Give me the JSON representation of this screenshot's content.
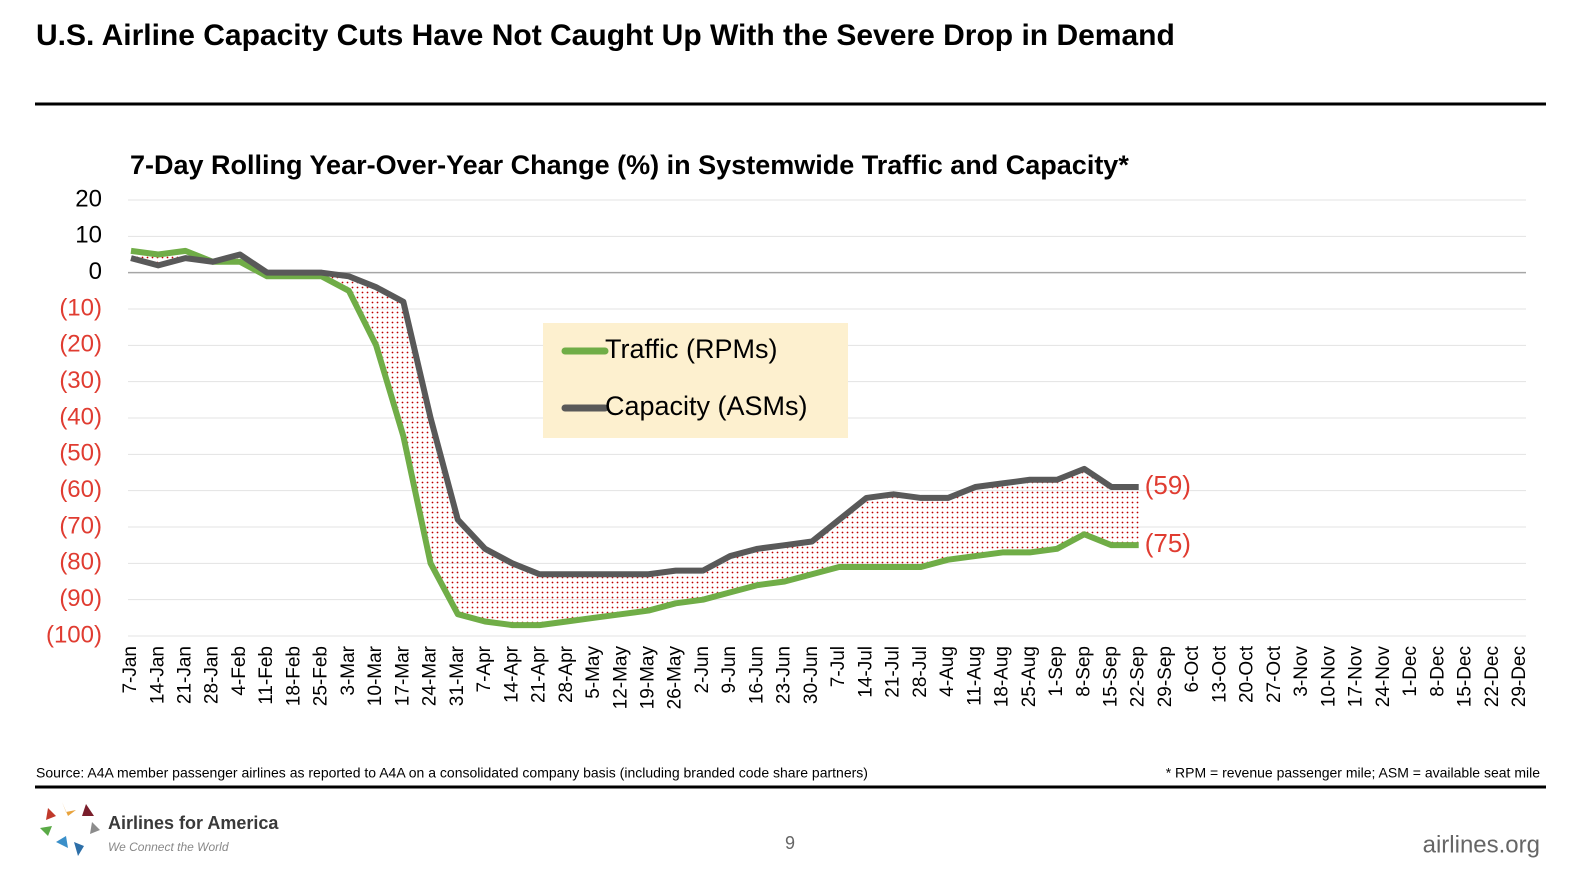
{
  "header": {
    "title": "U.S. Airline Capacity Cuts Have Not Caught Up With the Severe Drop in Demand"
  },
  "chart_data": {
    "type": "line",
    "title": "7-Day Rolling Year-Over-Year Change (%) in Systemwide Traffic and Capacity*",
    "categories": [
      "7-Jan",
      "14-Jan",
      "21-Jan",
      "28-Jan",
      "4-Feb",
      "11-Feb",
      "18-Feb",
      "25-Feb",
      "3-Mar",
      "10-Mar",
      "17-Mar",
      "24-Mar",
      "31-Mar",
      "7-Apr",
      "14-Apr",
      "21-Apr",
      "28-Apr",
      "5-May",
      "12-May",
      "19-May",
      "26-May",
      "2-Jun",
      "9-Jun",
      "16-Jun",
      "23-Jun",
      "30-Jun",
      "7-Jul",
      "14-Jul",
      "21-Jul",
      "28-Jul",
      "4-Aug",
      "11-Aug",
      "18-Aug",
      "25-Aug",
      "1-Sep",
      "8-Sep",
      "15-Sep",
      "22-Sep",
      "29-Sep",
      "6-Oct",
      "13-Oct",
      "20-Oct",
      "27-Oct",
      "3-Nov",
      "10-Nov",
      "17-Nov",
      "24-Nov",
      "1-Dec",
      "8-Dec",
      "15-Dec",
      "22-Dec",
      "29-Dec"
    ],
    "series": [
      {
        "name": "Traffic (RPMs)",
        "color": "#70ad47",
        "values": [
          6,
          5,
          6,
          3,
          3,
          -1,
          -1,
          -1,
          -5,
          -20,
          -45,
          -80,
          -94,
          -96,
          -97,
          -97,
          -96,
          -95,
          -94,
          -93,
          -91,
          -90,
          -88,
          -86,
          -85,
          -83,
          -81,
          -81,
          -81,
          -81,
          -79,
          -78,
          -77,
          -77,
          -76,
          -72,
          -75,
          -75,
          null,
          null,
          null,
          null,
          null,
          null,
          null,
          null,
          null,
          null,
          null,
          null,
          null,
          null
        ],
        "value_labels": [
          null,
          null,
          null,
          null,
          null,
          null,
          null,
          null,
          null,
          null,
          null,
          null,
          null,
          null,
          null,
          null,
          null,
          null,
          null,
          null,
          null,
          null,
          null,
          null,
          null,
          null,
          null,
          null,
          null,
          null,
          null,
          null,
          null,
          null,
          null,
          null,
          null,
          "(75)",
          null,
          null,
          null,
          null,
          null,
          null,
          null,
          null,
          null,
          null,
          null,
          null,
          null,
          null
        ]
      },
      {
        "name": "Capacity (ASMs)",
        "color": "#595959",
        "values": [
          4,
          2,
          4,
          3,
          5,
          0,
          0,
          0,
          -1,
          -4,
          -8,
          -40,
          -68,
          -76,
          -80,
          -83,
          -83,
          -83,
          -83,
          -83,
          -82,
          -82,
          -78,
          -76,
          -75,
          -74,
          -68,
          -62,
          -61,
          -62,
          -62,
          -59,
          -58,
          -57,
          -57,
          -54,
          -59,
          -59,
          null,
          null,
          null,
          null,
          null,
          null,
          null,
          null,
          null,
          null,
          null,
          null,
          null,
          null
        ],
        "value_labels": [
          null,
          null,
          null,
          null,
          null,
          null,
          null,
          null,
          null,
          null,
          null,
          null,
          null,
          null,
          null,
          null,
          null,
          null,
          null,
          null,
          null,
          null,
          null,
          null,
          null,
          null,
          null,
          null,
          null,
          null,
          null,
          null,
          null,
          null,
          null,
          null,
          null,
          "(59)",
          null,
          null,
          null,
          null,
          null,
          null,
          null,
          null,
          null,
          null,
          null,
          null,
          null,
          null
        ]
      }
    ],
    "ylim": [
      -100,
      20
    ],
    "yticks": [
      20,
      10,
      0,
      {
        "value": -10,
        "label": "(10)"
      },
      {
        "value": -20,
        "label": "(20)"
      },
      {
        "value": -30,
        "label": "(30)"
      },
      {
        "value": -40,
        "label": "(40)"
      },
      {
        "value": -50,
        "label": "(50)"
      },
      {
        "value": -60,
        "label": "(60)"
      },
      {
        "value": -70,
        "label": "(70)"
      },
      {
        "value": -80,
        "label": "(80)"
      },
      {
        "value": -90,
        "label": "(90)"
      },
      {
        "value": -100,
        "label": "(100)"
      }
    ],
    "grid": true,
    "legend": "center",
    "gap_fill_color": "#c00000"
  },
  "footer": {
    "source": "Source: A4A member passenger airlines as reported to A4A on a consolidated company basis (including branded code share partners)",
    "note": "* RPM = revenue passenger mile; ASM = available seat mile",
    "brand": "Airlines for America",
    "tagline": "We Connect the World",
    "page": "9",
    "url": "airlines.org"
  }
}
